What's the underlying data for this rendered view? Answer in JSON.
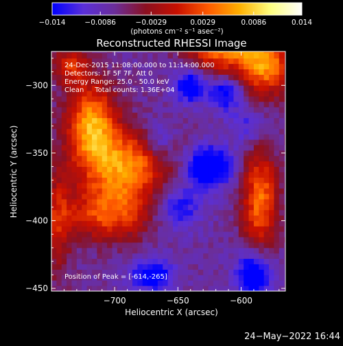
{
  "chart_data": {
    "type": "heatmap",
    "title": "Reconstructed RHESSI Image",
    "xlabel": "Heliocentric X (arcsec)",
    "ylabel": "Heliocentric Y (arcsec)",
    "xlim": [
      -750,
      -565
    ],
    "ylim": [
      -452,
      -275
    ],
    "x_ticks": [
      {
        "value": -700,
        "label": "−700"
      },
      {
        "value": -650,
        "label": "−650"
      },
      {
        "value": -600,
        "label": "−600"
      }
    ],
    "y_ticks": [
      {
        "value": -300,
        "label": "−300"
      },
      {
        "value": -350,
        "label": "−350"
      },
      {
        "value": -400,
        "label": "−400"
      },
      {
        "value": -450,
        "label": "−450"
      }
    ],
    "colorbar": {
      "range": [
        -0.014,
        0.014
      ],
      "ticks": [
        {
          "value": -0.014,
          "label": "−0.014"
        },
        {
          "value": -0.0086,
          "label": "−0.0086"
        },
        {
          "value": -0.0029,
          "label": "−0.0029"
        },
        {
          "value": 0.0029,
          "label": "0.0029"
        },
        {
          "value": 0.0086,
          "label": "0.0086"
        },
        {
          "value": 0.014,
          "label": "0.014"
        }
      ],
      "unit_label": "(photons cm⁻² s⁻¹ asec⁻²)",
      "colors": [
        "#0000ff",
        "#5a2fd8",
        "#6b2e9a",
        "#8a1020",
        "#c81000",
        "#ff5a00",
        "#ffb000",
        "#ffff80",
        "#ffffff"
      ]
    },
    "annotations": [
      "24-Dec-2015 11:08:00.000 to 11:14:00.000",
      "Detectors: 1F 5F 7F, Att 0",
      "Energy Range: 25.0 - 50.0 keV",
      "Clean     Total counts: 1.36E+04"
    ],
    "peak_label": "Position of Peak = [-614,-265]",
    "peak_position": [
      -614,
      -265
    ],
    "sources": [
      {
        "x": -718,
        "y": -330,
        "amp": 0.0138,
        "sx": 14,
        "sy": 22
      },
      {
        "x": -690,
        "y": -360,
        "amp": 0.0125,
        "sx": 22,
        "sy": 18
      },
      {
        "x": -705,
        "y": -395,
        "amp": 0.0095,
        "sx": 25,
        "sy": 14
      },
      {
        "x": -614,
        "y": -265,
        "amp": 0.014,
        "sx": 20,
        "sy": 18
      },
      {
        "x": -580,
        "y": -285,
        "amp": 0.012,
        "sx": 14,
        "sy": 16
      },
      {
        "x": -735,
        "y": -285,
        "amp": 0.008,
        "sx": 10,
        "sy": 10
      },
      {
        "x": -585,
        "y": -385,
        "amp": 0.0115,
        "sx": 10,
        "sy": 26
      },
      {
        "x": -745,
        "y": -400,
        "amp": 0.006,
        "sx": 8,
        "sy": 30
      },
      {
        "x": -640,
        "y": -300,
        "amp": -0.0095,
        "sx": 9,
        "sy": 9
      },
      {
        "x": -625,
        "y": -360,
        "amp": -0.012,
        "sx": 12,
        "sy": 10
      },
      {
        "x": -612,
        "y": -305,
        "amp": -0.0085,
        "sx": 9,
        "sy": 9
      },
      {
        "x": -670,
        "y": -440,
        "amp": -0.0085,
        "sx": 12,
        "sy": 9
      },
      {
        "x": -590,
        "y": -440,
        "amp": -0.011,
        "sx": 10,
        "sy": 12
      },
      {
        "x": -650,
        "y": -390,
        "amp": -0.0065,
        "sx": 14,
        "sy": 12
      },
      {
        "x": -595,
        "y": -330,
        "amp": -0.0045,
        "sx": 10,
        "sy": 10
      },
      {
        "x": -665,
        "y": -340,
        "amp": -0.005,
        "sx": 8,
        "sy": 10
      }
    ]
  },
  "footer": {
    "timestamp": "24−May−2022 16:44"
  }
}
